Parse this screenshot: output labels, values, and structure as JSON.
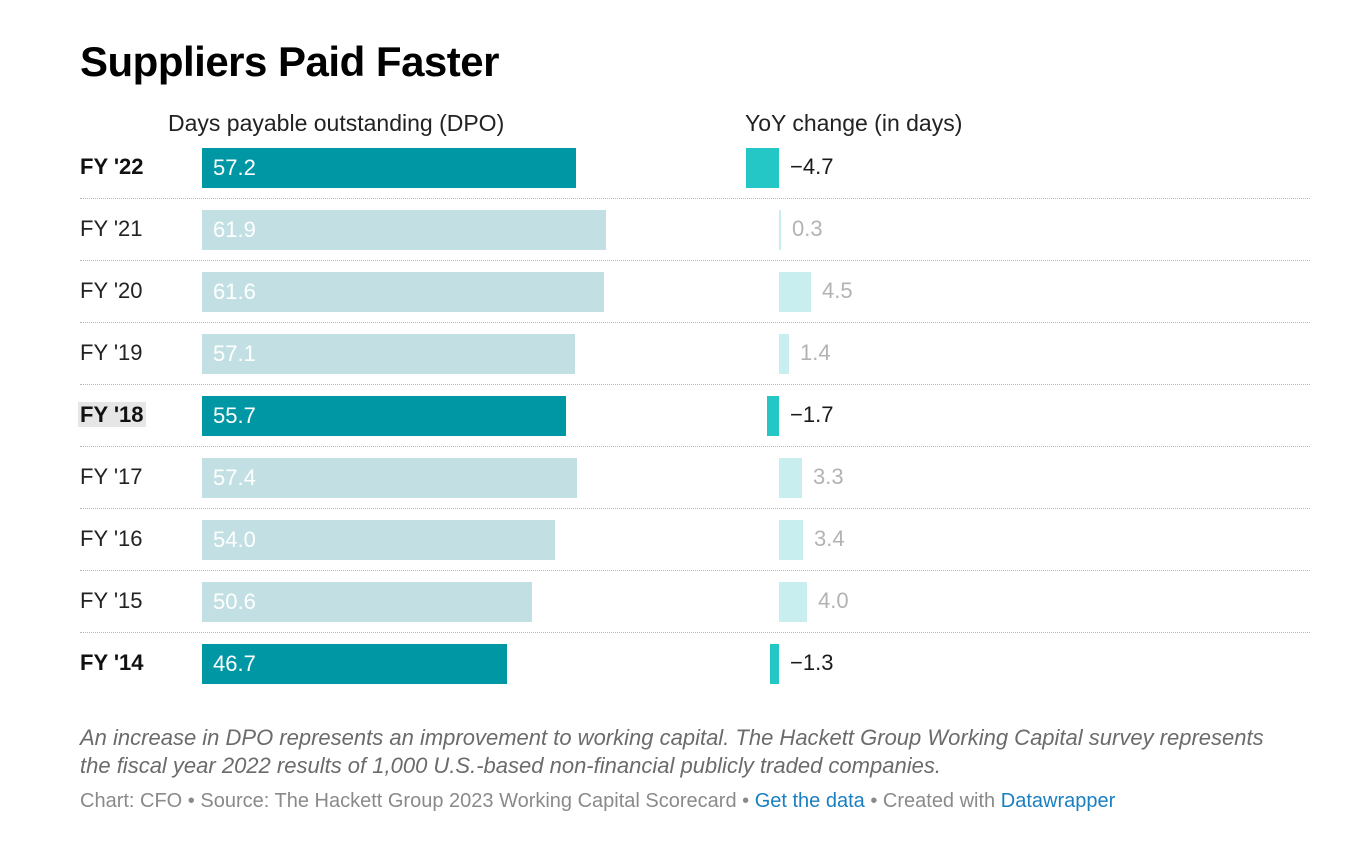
{
  "chart_data": {
    "type": "bar",
    "title": "Suppliers Paid Faster",
    "series": [
      {
        "name": "Days payable outstanding (DPO)",
        "values": [
          57.2,
          61.9,
          61.6,
          57.1,
          55.7,
          57.4,
          54.0,
          50.6,
          46.7
        ]
      },
      {
        "name": "YoY change (in days)",
        "values": [
          -4.7,
          0.3,
          4.5,
          1.4,
          -1.7,
          3.3,
          3.4,
          4.0,
          -1.3
        ]
      }
    ],
    "categories": [
      "FY '22",
      "FY '21",
      "FY '20",
      "FY '19",
      "FY '18",
      "FY '17",
      "FY '16",
      "FY '15",
      "FY '14"
    ],
    "rows": [
      {
        "label": "FY '22",
        "dpo": 57.2,
        "dpo_text": "57.2",
        "yoy": -4.7,
        "yoy_text": "−4.7",
        "highlight": true,
        "marked": false
      },
      {
        "label": "FY '21",
        "dpo": 61.9,
        "dpo_text": "61.9",
        "yoy": 0.3,
        "yoy_text": "0.3",
        "highlight": false,
        "marked": false
      },
      {
        "label": "FY '20",
        "dpo": 61.6,
        "dpo_text": "61.6",
        "yoy": 4.5,
        "yoy_text": "4.5",
        "highlight": false,
        "marked": false
      },
      {
        "label": "FY '19",
        "dpo": 57.1,
        "dpo_text": "57.1",
        "yoy": 1.4,
        "yoy_text": "1.4",
        "highlight": false,
        "marked": false
      },
      {
        "label": "FY '18",
        "dpo": 55.7,
        "dpo_text": "55.7",
        "yoy": -1.7,
        "yoy_text": "−1.7",
        "highlight": true,
        "marked": true
      },
      {
        "label": "FY '17",
        "dpo": 57.4,
        "dpo_text": "57.4",
        "yoy": 3.3,
        "yoy_text": "3.3",
        "highlight": false,
        "marked": false
      },
      {
        "label": "FY '16",
        "dpo": 54.0,
        "dpo_text": "54.0",
        "yoy": 3.4,
        "yoy_text": "3.4",
        "highlight": false,
        "marked": false
      },
      {
        "label": "FY '15",
        "dpo": 50.6,
        "dpo_text": "50.6",
        "yoy": 4.0,
        "yoy_text": "4.0",
        "highlight": false,
        "marked": false
      },
      {
        "label": "FY '14",
        "dpo": 46.7,
        "dpo_text": "46.7",
        "yoy": -1.3,
        "yoy_text": "−1.3",
        "highlight": true,
        "marked": false
      }
    ],
    "dpo_range": [
      0,
      66
    ],
    "yoy_range": [
      -5,
      10
    ],
    "column_headers": {
      "dpo": "Days payable outstanding (DPO)",
      "yoy": "YoY change (in days)"
    },
    "colors": {
      "highlight_bar": "#0097a4",
      "muted_bar": "#c2e0e3",
      "highlight_change": "#24c6c6",
      "muted_change": "#c8eeef"
    }
  },
  "notes": "An increase in DPO represents an improvement to working capital. The Hackett Group Working Capital survey represents the fiscal year 2022 results of 1,000 U.S.-based non-financial publicly traded companies.",
  "footer": {
    "chart_credit": "Chart: CFO",
    "source": "Source: The Hackett Group 2023 Working Capital Scorecard",
    "get_data": "Get the data",
    "created_with": "Created with",
    "datawrapper": "Datawrapper",
    "separator": " • "
  }
}
